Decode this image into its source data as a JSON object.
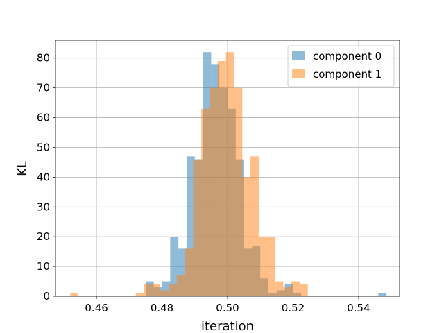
{
  "chart_data": {
    "type": "histogram",
    "title": "",
    "xlabel": "iteration",
    "ylabel": "KL",
    "xlim": [
      0.4475,
      0.5525
    ],
    "ylim": [
      0,
      86
    ],
    "xticks": [
      0.46,
      0.48,
      0.5,
      0.52,
      0.54
    ],
    "yticks": [
      0,
      10,
      20,
      30,
      40,
      50,
      60,
      70,
      80
    ],
    "grid": true,
    "legend_position": "top-right",
    "series": [
      {
        "name": "component 0",
        "color": "#1f77b4",
        "alpha": 0.5,
        "bin_edges": [
          0.475,
          0.4775,
          0.48,
          0.4825,
          0.485,
          0.4875,
          0.49,
          0.4925,
          0.495,
          0.4975,
          0.5,
          0.5025,
          0.505,
          0.5075,
          0.51,
          0.5125,
          0.515,
          0.5175,
          0.52,
          0.5225,
          0.525,
          0.5275
        ],
        "counts": [
          5,
          3,
          5,
          20,
          16,
          47,
          46,
          82,
          78,
          70,
          63,
          46,
          16,
          17,
          6,
          1,
          2,
          4,
          1,
          0,
          0
        ],
        "outliers": [
          {
            "x_left": 0.546,
            "x_right": 0.5485,
            "count": 1
          }
        ]
      },
      {
        "name": "component 1",
        "color": "#ff7f0e",
        "alpha": 0.5,
        "bin_edges": [
          0.452,
          0.4545
        ],
        "counts": [
          1
        ],
        "bins": [
          {
            "x_left": 0.452,
            "x_right": 0.4545,
            "count": 1
          },
          {
            "x_left": 0.472,
            "x_right": 0.4745,
            "count": 1
          },
          {
            "x_left": 0.4745,
            "x_right": 0.477,
            "count": 4
          },
          {
            "x_left": 0.477,
            "x_right": 0.4795,
            "count": 4
          },
          {
            "x_left": 0.4795,
            "x_right": 0.482,
            "count": 2
          },
          {
            "x_left": 0.482,
            "x_right": 0.4845,
            "count": 4
          },
          {
            "x_left": 0.4845,
            "x_right": 0.487,
            "count": 7
          },
          {
            "x_left": 0.487,
            "x_right": 0.4895,
            "count": 16
          },
          {
            "x_left": 0.4895,
            "x_right": 0.492,
            "count": 46
          },
          {
            "x_left": 0.492,
            "x_right": 0.4945,
            "count": 63
          },
          {
            "x_left": 0.4945,
            "x_right": 0.497,
            "count": 70
          },
          {
            "x_left": 0.497,
            "x_right": 0.4995,
            "count": 79
          },
          {
            "x_left": 0.4995,
            "x_right": 0.502,
            "count": 82
          },
          {
            "x_left": 0.502,
            "x_right": 0.5045,
            "count": 70
          },
          {
            "x_left": 0.5045,
            "x_right": 0.507,
            "count": 40
          },
          {
            "x_left": 0.507,
            "x_right": 0.5095,
            "count": 47
          },
          {
            "x_left": 0.5095,
            "x_right": 0.512,
            "count": 20
          },
          {
            "x_left": 0.512,
            "x_right": 0.5145,
            "count": 20
          },
          {
            "x_left": 0.5145,
            "x_right": 0.517,
            "count": 5
          },
          {
            "x_left": 0.517,
            "x_right": 0.5195,
            "count": 3
          },
          {
            "x_left": 0.5195,
            "x_right": 0.522,
            "count": 5
          },
          {
            "x_left": 0.522,
            "x_right": 0.5245,
            "count": 4
          }
        ]
      }
    ]
  }
}
